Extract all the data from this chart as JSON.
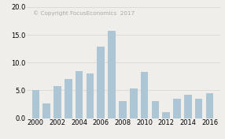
{
  "years": [
    2000,
    2001,
    2002,
    2003,
    2004,
    2005,
    2006,
    2007,
    2008,
    2009,
    2010,
    2011,
    2012,
    2013,
    2014,
    2015,
    2016
  ],
  "values": [
    5.0,
    2.7,
    5.8,
    7.0,
    8.5,
    8.1,
    12.8,
    15.7,
    3.0,
    5.4,
    8.3,
    3.1,
    1.1,
    3.5,
    4.2,
    3.5,
    4.5
  ],
  "bar_color": "#adc6d5",
  "background_color": "#f0eeea",
  "watermark": "© Copyright FocusEconomics  2017",
  "watermark_color": "#aaaaaa",
  "ylim": [
    0,
    20.0
  ],
  "yticks": [
    0.0,
    5.0,
    10.0,
    15.0,
    20.0
  ],
  "xtick_years": [
    2000,
    2002,
    2004,
    2006,
    2008,
    2010,
    2012,
    2014,
    2016
  ],
  "grid_color": "#d8d8d4",
  "tick_label_fontsize": 6.0,
  "watermark_fontsize": 5.2
}
